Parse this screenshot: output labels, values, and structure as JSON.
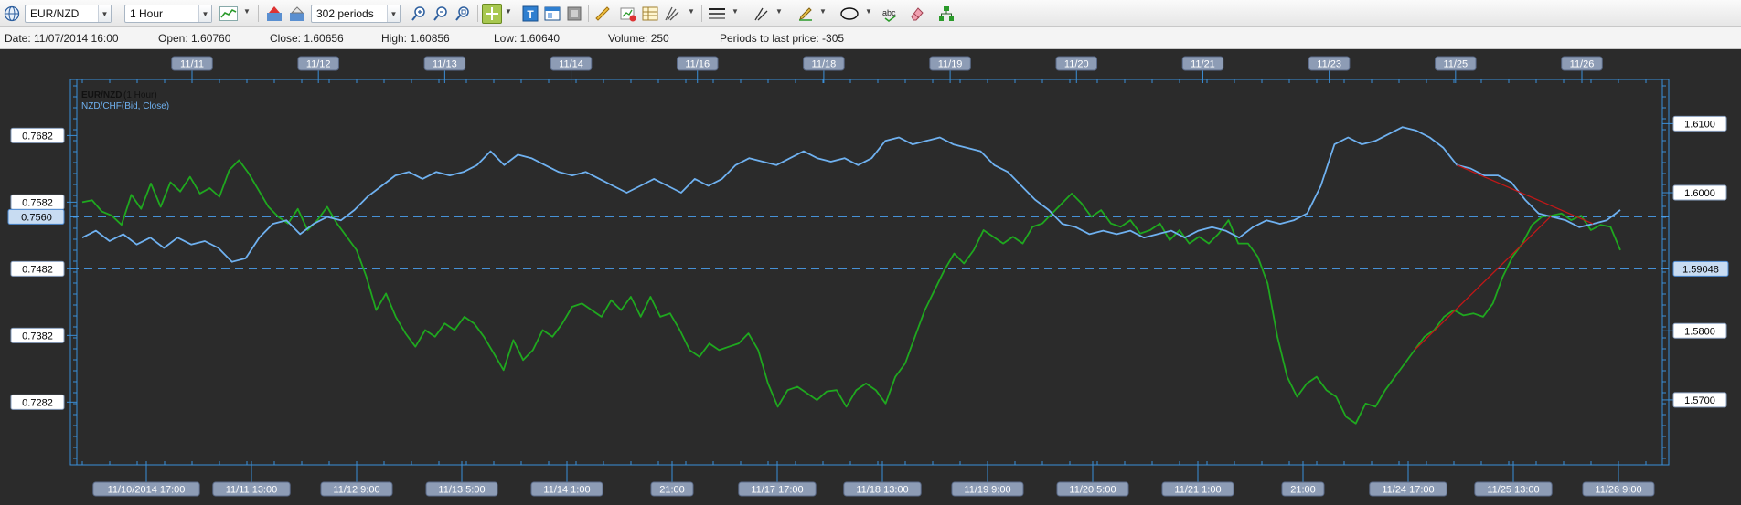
{
  "toolbar": {
    "symbol": "EUR/NZD",
    "timeframe": "1 Hour",
    "periods": "302 periods",
    "icons": [
      "globe-icon",
      "line-chart-icon",
      "chart-up-icon",
      "chart-down-icon",
      "zoom-in-icon",
      "zoom-out-icon",
      "zoom-fit-icon",
      "crosshair-icon",
      "text-icon",
      "window-icon",
      "panel-icon",
      "ruler-icon",
      "add-indicator-icon",
      "table-icon",
      "fibonacci-icon",
      "lines-icon",
      "draw-icon",
      "pencil-icon",
      "ellipse-icon",
      "abc-text-icon",
      "eraser-icon",
      "hierarchy-icon"
    ]
  },
  "info": {
    "date": "Date: 11/07/2014 16:00",
    "open": "Open: 1.60760",
    "close": "Close: 1.60656",
    "high": "High: 1.60856",
    "low": "Low: 1.60640",
    "volume": "Volume: 250",
    "periods_to_last": "Periods to last price: -305"
  },
  "chart_data": {
    "type": "line",
    "legend": [
      {
        "label": "EUR/NZD",
        "suffix": "(1 Hour)",
        "color": "#111111"
      },
      {
        "label": "NZD/CHF(Bid, Close)",
        "suffix": "",
        "color": "#6fb1f0"
      }
    ],
    "top_axis_dates": [
      "11/11",
      "11/12",
      "11/13",
      "11/14",
      "11/16",
      "11/18",
      "11/19",
      "11/20",
      "11/21",
      "11/23",
      "11/25",
      "11/26"
    ],
    "bottom_axis_labels": [
      "11/10/2014 17:00",
      "11/11 13:00",
      "11/12 9:00",
      "11/13 5:00",
      "11/14 1:00",
      "21:00",
      "11/17 17:00",
      "11/18 13:00",
      "11/19 9:00",
      "11/20 5:00",
      "11/21 1:00",
      "21:00",
      "11/24 17:00",
      "11/25 13:00",
      "11/26 9:00"
    ],
    "left_axis": {
      "ticks": [
        "0.7682",
        "0.7582",
        "0.7482",
        "0.7382",
        "0.7282"
      ],
      "current": "0.7560",
      "range": [
        0.7192,
        0.7762
      ]
    },
    "right_axis": {
      "ticks": [
        "1.6100",
        "1.6000",
        "1.5800",
        "1.5700"
      ],
      "current": "1.59048",
      "range": [
        1.561,
        1.616
      ]
    },
    "hlines_left_values": [
      0.756,
      0.7482
    ],
    "series": [
      {
        "name": "EUR/NZD",
        "axis": "left",
        "color": "#1fa81f",
        "values": [
          0.7582,
          0.7585,
          0.7568,
          0.7562,
          0.7548,
          0.7593,
          0.7572,
          0.761,
          0.7575,
          0.7612,
          0.7598,
          0.762,
          0.7595,
          0.7603,
          0.759,
          0.763,
          0.7645,
          0.7625,
          0.76,
          0.7575,
          0.756,
          0.755,
          0.7572,
          0.754,
          0.7555,
          0.7575,
          0.755,
          0.753,
          0.751,
          0.747,
          0.742,
          0.7445,
          0.741,
          0.7385,
          0.7365,
          0.739,
          0.738,
          0.74,
          0.739,
          0.741,
          0.74,
          0.738,
          0.7355,
          0.733,
          0.7375,
          0.7345,
          0.736,
          0.739,
          0.738,
          0.74,
          0.7425,
          0.743,
          0.742,
          0.741,
          0.7435,
          0.742,
          0.744,
          0.741,
          0.744,
          0.741,
          0.7415,
          0.739,
          0.736,
          0.735,
          0.737,
          0.736,
          0.7365,
          0.737,
          0.7385,
          0.736,
          0.731,
          0.7275,
          0.73,
          0.7305,
          0.7295,
          0.7285,
          0.7298,
          0.73,
          0.7275,
          0.73,
          0.731,
          0.73,
          0.728,
          0.732,
          0.734,
          0.738,
          0.742,
          0.745,
          0.748,
          0.7505,
          0.749,
          0.751,
          0.754,
          0.753,
          0.752,
          0.753,
          0.752,
          0.7545,
          0.755,
          0.7565,
          0.758,
          0.7595,
          0.758,
          0.756,
          0.757,
          0.755,
          0.7545,
          0.7555,
          0.7535,
          0.754,
          0.755,
          0.7525,
          0.754,
          0.752,
          0.753,
          0.752,
          0.7535,
          0.7555,
          0.752,
          0.752,
          0.75,
          0.746,
          0.738,
          0.732,
          0.729,
          0.731,
          0.732,
          0.73,
          0.729,
          0.726,
          0.725,
          0.728,
          0.7275,
          0.73,
          0.732,
          0.734,
          0.736,
          0.738,
          0.739,
          0.741,
          0.742,
          0.7412,
          0.7415,
          0.741,
          0.743,
          0.747,
          0.75,
          0.752,
          0.7548,
          0.756,
          0.7562,
          0.7565,
          0.7555,
          0.7562,
          0.754,
          0.7548,
          0.7545,
          0.751
        ]
      },
      {
        "name": "NZD/CHF(Bid, Close)",
        "axis": "right",
        "color": "#6fb1f0",
        "values": [
          1.5935,
          1.5945,
          1.593,
          1.594,
          1.5925,
          1.5935,
          1.592,
          1.5935,
          1.5925,
          1.593,
          1.592,
          1.59,
          1.5905,
          1.5935,
          1.5955,
          1.596,
          1.594,
          1.5955,
          1.5965,
          1.596,
          1.5975,
          1.5995,
          1.601,
          1.6025,
          1.603,
          1.602,
          1.603,
          1.6025,
          1.603,
          1.604,
          1.606,
          1.604,
          1.6055,
          1.605,
          1.604,
          1.603,
          1.6025,
          1.603,
          1.602,
          1.601,
          1.6,
          1.601,
          1.602,
          1.601,
          1.6,
          1.602,
          1.601,
          1.602,
          1.604,
          1.605,
          1.6045,
          1.604,
          1.605,
          1.606,
          1.605,
          1.6045,
          1.605,
          1.604,
          1.605,
          1.6075,
          1.608,
          1.607,
          1.6075,
          1.608,
          1.607,
          1.6065,
          1.606,
          1.604,
          1.603,
          1.601,
          1.599,
          1.5975,
          1.5955,
          1.595,
          1.594,
          1.5945,
          1.594,
          1.5945,
          1.5935,
          1.594,
          1.5945,
          1.5935,
          1.5945,
          1.595,
          1.5945,
          1.5935,
          1.595,
          1.596,
          1.5955,
          1.596,
          1.597,
          1.601,
          1.607,
          1.608,
          1.607,
          1.6075,
          1.6085,
          1.6095,
          1.609,
          1.608,
          1.6065,
          1.604,
          1.6035,
          1.6025,
          1.6025,
          1.6015,
          1.599,
          1.597,
          1.5965,
          1.596,
          1.595,
          1.5955,
          1.596,
          1.5975
        ]
      }
    ],
    "annotation_lines_color": "#c01818"
  },
  "colors": {
    "background": "#2b2b2b",
    "axis": "#3a8fd8",
    "label_bg": "#8d9cb5",
    "price_box": "#ffffff",
    "current_box": "#c8dcf2"
  }
}
